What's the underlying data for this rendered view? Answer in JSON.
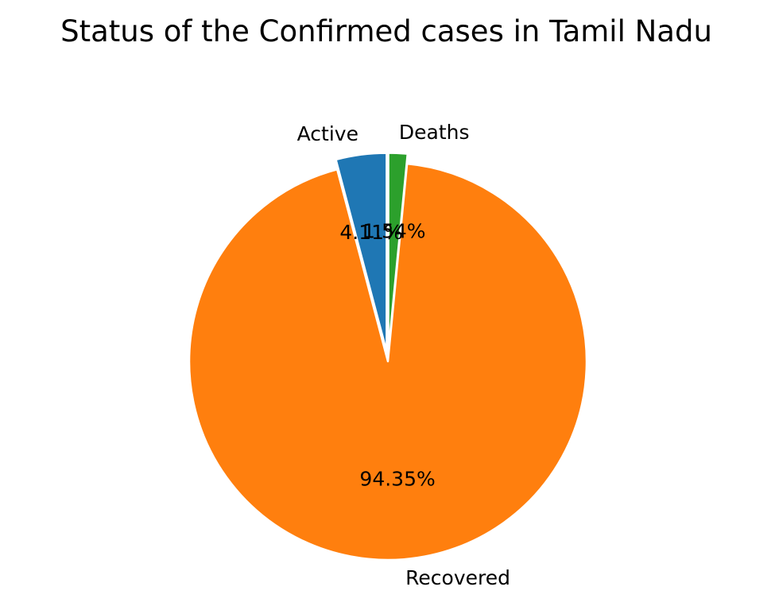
{
  "chart_data": {
    "type": "pie",
    "title": "Status of the  Confirmed cases in Tamil Nadu",
    "slices": [
      {
        "label": "Active",
        "percent": 4.11,
        "percent_label": "4.11%",
        "color": "#1f77b4",
        "exploded": true
      },
      {
        "label": "Recovered",
        "percent": 94.35,
        "percent_label": "94.35%",
        "color": "#ff7f0e",
        "exploded": false
      },
      {
        "label": "Deaths",
        "percent": 1.54,
        "percent_label": "1.54%",
        "color": "#2ca02c",
        "exploded": true
      }
    ],
    "start_angle_deg": 90,
    "direction": "counterclockwise",
    "edge_color": "#ffffff"
  }
}
